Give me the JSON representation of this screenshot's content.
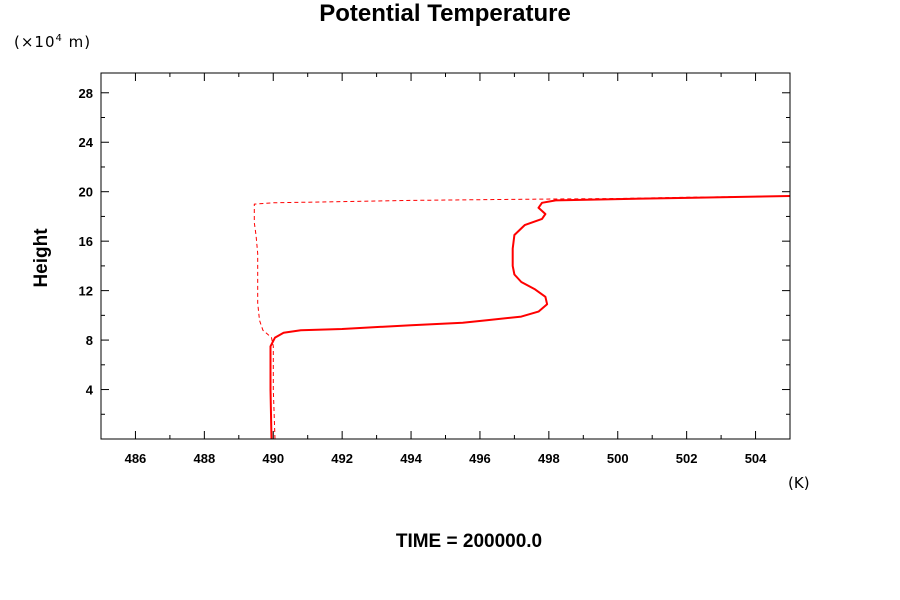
{
  "chart_data": {
    "type": "line",
    "title": "Potential Temperature",
    "ylabel": "Height",
    "yunit_prefix": "(×10",
    "yunit_exp": "4",
    "yunit_suffix": " m)",
    "xunit": "(K)",
    "footer": "TIME = 200000.0",
    "xlim": [
      485,
      505
    ],
    "ylim": [
      0,
      29.6
    ],
    "xticks": [
      486,
      488,
      490,
      492,
      494,
      496,
      498,
      500,
      502,
      504
    ],
    "yticks": [
      4,
      8,
      12,
      16,
      20,
      24,
      28
    ],
    "grid": false,
    "series": [
      {
        "style": "solid",
        "color": "#ff0000",
        "points": [
          [
            489.95,
            0
          ],
          [
            489.92,
            4
          ],
          [
            489.92,
            7.5
          ],
          [
            490.05,
            8.2
          ],
          [
            490.3,
            8.6
          ],
          [
            490.8,
            8.8
          ],
          [
            492,
            8.9
          ],
          [
            494,
            9.2
          ],
          [
            495.5,
            9.4
          ],
          [
            496.2,
            9.6
          ],
          [
            497.2,
            9.9
          ],
          [
            497.7,
            10.3
          ],
          [
            497.95,
            10.9
          ],
          [
            497.9,
            11.5
          ],
          [
            497.6,
            12.1
          ],
          [
            497.2,
            12.7
          ],
          [
            497.0,
            13.3
          ],
          [
            496.95,
            14
          ],
          [
            496.95,
            15.4
          ],
          [
            497.0,
            16.5
          ],
          [
            497.3,
            17.3
          ],
          [
            497.8,
            17.8
          ],
          [
            497.9,
            18.2
          ],
          [
            497.7,
            18.7
          ],
          [
            497.8,
            19.1
          ],
          [
            498.2,
            19.3
          ],
          [
            500,
            19.4
          ],
          [
            502,
            19.5
          ],
          [
            504,
            19.6
          ],
          [
            505,
            19.65
          ]
        ]
      },
      {
        "style": "dashed",
        "color": "#ff0000",
        "points": [
          [
            490.05,
            0
          ],
          [
            490.0,
            4
          ],
          [
            490.0,
            7.5
          ],
          [
            489.95,
            8.2
          ],
          [
            489.7,
            8.8
          ],
          [
            489.6,
            9.6
          ],
          [
            489.55,
            11
          ],
          [
            489.55,
            13
          ],
          [
            489.55,
            15
          ],
          [
            489.5,
            16.5
          ],
          [
            489.45,
            17.5
          ],
          [
            489.45,
            19.0
          ],
          [
            490,
            19.1
          ],
          [
            492,
            19.2
          ],
          [
            494,
            19.3
          ],
          [
            496,
            19.35
          ],
          [
            497.8,
            19.4
          ],
          [
            500,
            19.45
          ],
          [
            502,
            19.55
          ],
          [
            505,
            19.65
          ]
        ]
      }
    ]
  }
}
